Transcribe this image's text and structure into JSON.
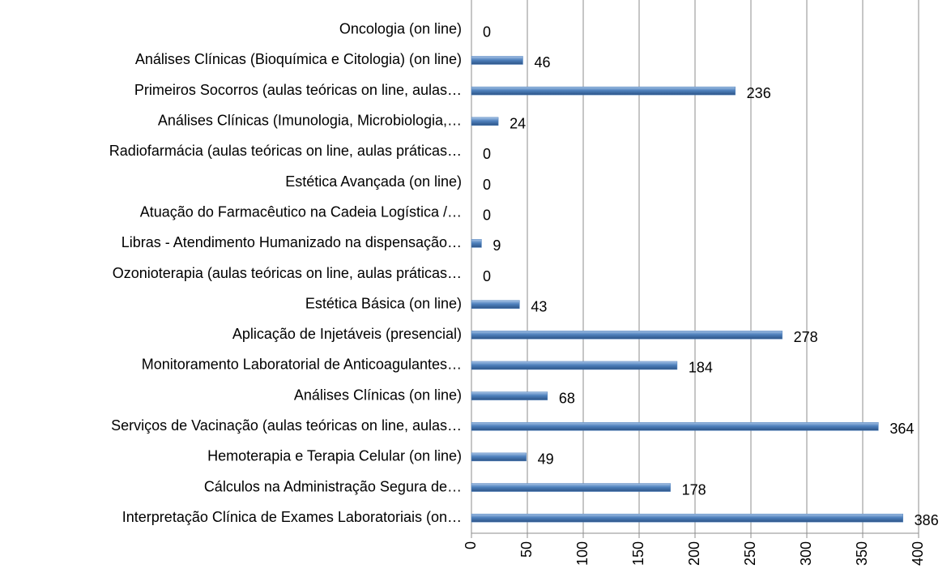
{
  "chart_data": {
    "type": "barh",
    "categories": [
      "Oncologia (on line)",
      "Análises Clínicas (Bioquímica e Citologia) (on line)",
      "Primeiros Socorros (aulas teóricas on line, aulas…",
      "Análises Clínicas (Imunologia, Microbiologia,…",
      "Radiofarmácia (aulas teóricas on line, aulas práticas…",
      "Estética Avançada (on line)",
      "Atuação do Farmacêutico na Cadeia Logística /…",
      "Libras - Atendimento Humanizado na dispensação…",
      "Ozonioterapia (aulas teóricas on line, aulas práticas…",
      "Estética Básica (on line)",
      "Aplicação de Injetáveis (presencial)",
      "Monitoramento Laboratorial de Anticoagulantes…",
      "Análises Clínicas (on line)",
      "Serviços de Vacinação (aulas teóricas on line, aulas…",
      "Hemoterapia e Terapia Celular (on line)",
      "Cálculos na Administração Segura de…",
      "Interpretação Clínica de Exames Laboratoriais (on…"
    ],
    "values": [
      0,
      46,
      236,
      24,
      0,
      0,
      0,
      9,
      0,
      43,
      278,
      184,
      68,
      364,
      49,
      178,
      386
    ],
    "color": "#4f81bd",
    "xlim": [
      0,
      400
    ],
    "xticks": [
      0,
      50,
      100,
      150,
      200,
      250,
      300,
      350,
      400
    ],
    "grid": true
  }
}
